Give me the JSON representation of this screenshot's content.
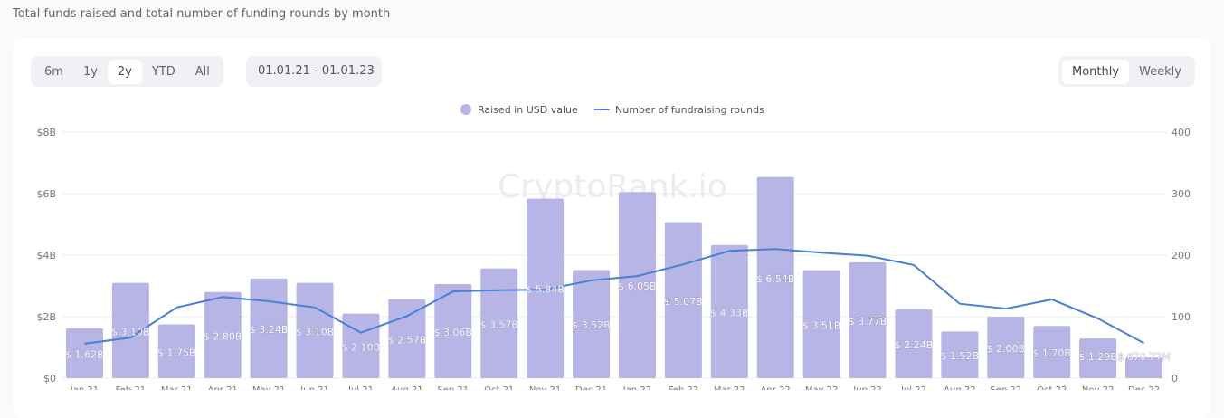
{
  "header": {
    "subtitle": "Total funds raised and total number of funding rounds by month"
  },
  "controls": {
    "ranges": [
      "6m",
      "1y",
      "2y",
      "YTD",
      "All"
    ],
    "active_range": "2y",
    "date_range": "01.01.21 - 01.01.23",
    "intervals": [
      "Monthly",
      "Weekly"
    ],
    "active_interval": "Monthly"
  },
  "watermark": "CryptoRank.io",
  "chart_data": {
    "type": "bar",
    "categories": [
      "Jan 21",
      "Feb 21",
      "Mar 21",
      "Apr 21",
      "May 21",
      "Jun 21",
      "Jul 21",
      "Aug 21",
      "Sep 21",
      "Oct 21",
      "Nov 21",
      "Dec 21",
      "Jan 22",
      "Feb 22",
      "Mar 22",
      "Apr 22",
      "May 22",
      "Jun 22",
      "Jul 22",
      "Aug 22",
      "Sep 22",
      "Oct 22",
      "Nov 22",
      "Dec 22"
    ],
    "legend_position": "top",
    "grid": true,
    "series": [
      {
        "name": "Raised in USD value",
        "type": "bar",
        "axis": "left",
        "color": "#b7b5e6",
        "values": [
          1.62,
          3.1,
          1.75,
          2.8,
          3.24,
          3.1,
          2.1,
          2.57,
          3.06,
          3.57,
          5.84,
          3.52,
          6.05,
          5.07,
          4.33,
          6.54,
          3.51,
          3.77,
          2.24,
          1.52,
          2.0,
          1.7,
          1.29,
          0.67077
        ],
        "labels": [
          "$ 1.62B",
          "$ 3.10B",
          "$ 1.75B",
          "$ 2.80B",
          "$ 3.24B",
          "$ 3.10B",
          "$ 2.10B",
          "$ 2.57B",
          "$ 3.06B",
          "$ 3.57B",
          "$ 5.84B",
          "$ 3.52B",
          "$ 6.05B",
          "$ 5.07B",
          "$ 4.33B",
          "$ 6.54B",
          "$ 3.51B",
          "$ 3.77B",
          "$ 2.24B",
          "$ 1.52B",
          "$ 2.00B",
          "$ 1.70B",
          "$ 1.29B",
          "$ 670.77M"
        ]
      },
      {
        "name": "Number of fundraising rounds",
        "type": "line",
        "axis": "right",
        "color": "#4a7fd4",
        "values": [
          56,
          66,
          115,
          132,
          125,
          115,
          74,
          101,
          141,
          143,
          144,
          159,
          166,
          185,
          207,
          210,
          204,
          199,
          184,
          121,
          113,
          128,
          97,
          57
        ]
      }
    ],
    "y_left": {
      "ylim": [
        0,
        8
      ],
      "ticks": [
        "$0",
        "$2B",
        "$4B",
        "$6B",
        "$8B"
      ]
    },
    "y_right": {
      "ylim": [
        0,
        400
      ],
      "ticks": [
        "0",
        "100",
        "200",
        "300",
        "400"
      ]
    }
  }
}
